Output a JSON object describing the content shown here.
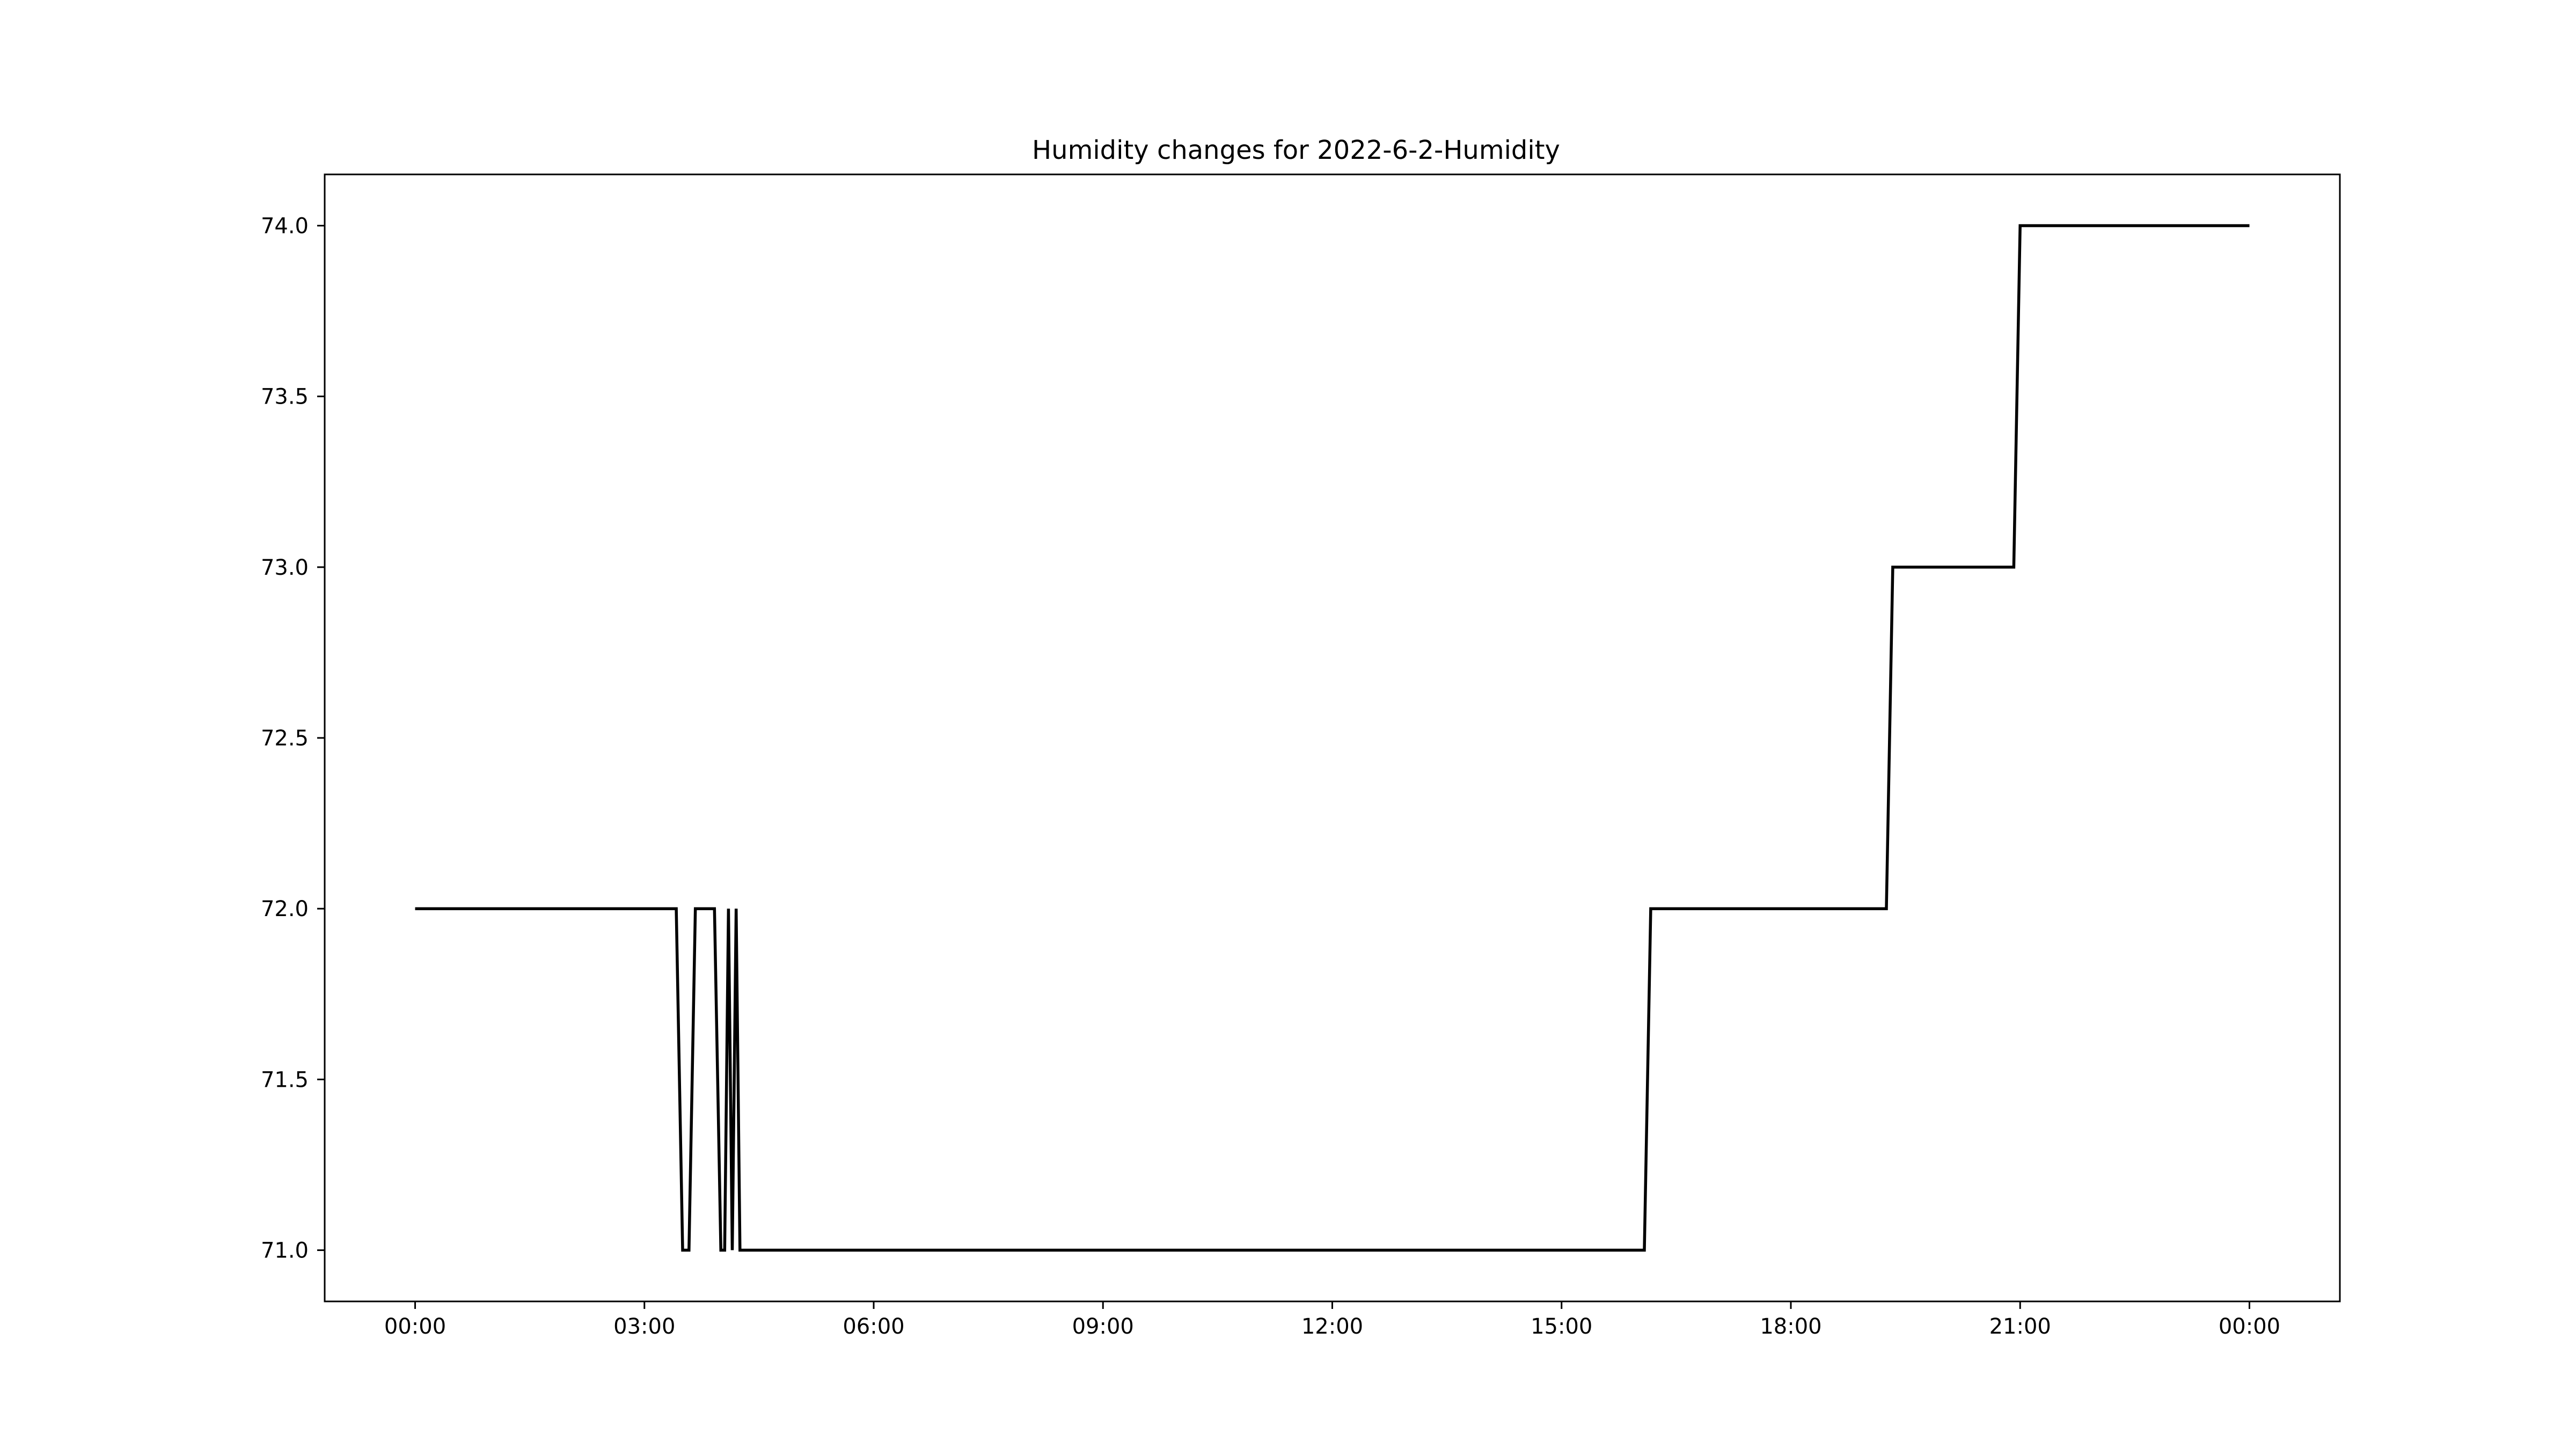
{
  "chart_data": {
    "type": "line",
    "title": "Humidity changes for 2022-6-2-Humidity",
    "xlabel": "",
    "ylabel": "",
    "x_axis_kind": "time-of-day",
    "x_ticks": [
      {
        "t": "00:00",
        "label": "00:00"
      },
      {
        "t": "03:00",
        "label": "03:00"
      },
      {
        "t": "06:00",
        "label": "06:00"
      },
      {
        "t": "09:00",
        "label": "09:00"
      },
      {
        "t": "12:00",
        "label": "12:00"
      },
      {
        "t": "15:00",
        "label": "15:00"
      },
      {
        "t": "18:00",
        "label": "18:00"
      },
      {
        "t": "21:00",
        "label": "21:00"
      },
      {
        "t": "24:00",
        "label": "00:00"
      }
    ],
    "y_ticks": [
      71.0,
      71.5,
      72.0,
      72.5,
      73.0,
      73.5,
      74.0
    ],
    "xlim": [
      "-01:11",
      "25:11"
    ],
    "ylim": [
      70.85,
      74.15
    ],
    "grid": false,
    "legend": "none",
    "series": [
      {
        "color": "#000000",
        "points": [
          {
            "t": "00:00",
            "y": 72
          },
          {
            "t": "03:25",
            "y": 72
          },
          {
            "t": "03:30",
            "y": 71
          },
          {
            "t": "03:35",
            "y": 71
          },
          {
            "t": "03:40",
            "y": 72
          },
          {
            "t": "03:55",
            "y": 72
          },
          {
            "t": "04:00",
            "y": 71
          },
          {
            "t": "04:03",
            "y": 71
          },
          {
            "t": "04:06",
            "y": 72
          },
          {
            "t": "04:09",
            "y": 71
          },
          {
            "t": "04:12",
            "y": 72
          },
          {
            "t": "04:15",
            "y": 71
          },
          {
            "t": "16:05",
            "y": 71
          },
          {
            "t": "16:10",
            "y": 72
          },
          {
            "t": "19:15",
            "y": 72
          },
          {
            "t": "19:20",
            "y": 73
          },
          {
            "t": "20:55",
            "y": 73
          },
          {
            "t": "21:00",
            "y": 74
          },
          {
            "t": "24:00",
            "y": 74
          }
        ]
      }
    ]
  }
}
